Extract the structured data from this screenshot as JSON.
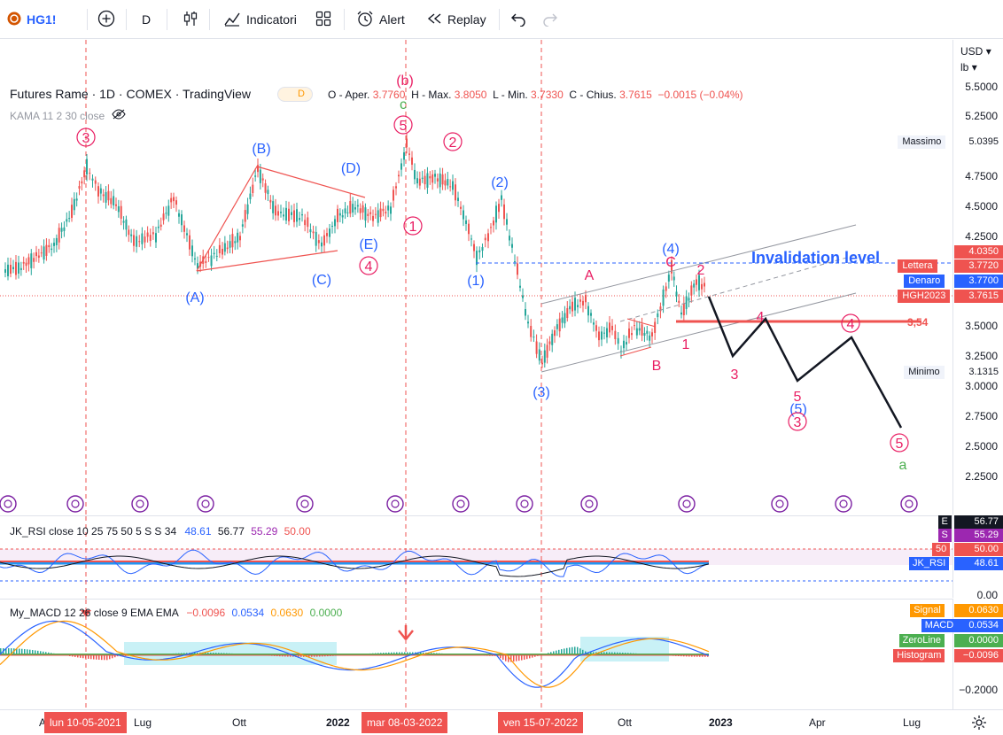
{
  "toolbar": {
    "symbol": "HG1!",
    "interval": "D",
    "indicators_label": "Indicatori",
    "alert_label": "Alert",
    "replay_label": "Replay"
  },
  "legend": {
    "title": "Futures Rame · 1D · COMEX · TradingView",
    "badge": "D",
    "open_label": "O - Aper.",
    "open": "3.7760",
    "high_label": "H - Max.",
    "high": "3.8050",
    "low_label": "L - Min.",
    "low": "3.7330",
    "close_label": "C - Chius.",
    "close": "3.7615",
    "change": "−0.0015 (−0.04%)",
    "kama": "KAMA 11 2 30 close"
  },
  "price_axis": {
    "currency": "USD",
    "unit": "lb",
    "ticks": [
      "5.5000",
      "5.2500",
      "4.7500",
      "4.5000",
      "4.2500",
      "3.5000",
      "3.2500",
      "3.0000",
      "2.7500",
      "2.5000",
      "2.2500"
    ],
    "badges": [
      {
        "label": "Massimo",
        "value": "5.0395",
        "color": "#ffffff",
        "text": "#131722"
      },
      {
        "label": "",
        "value": "4.0350",
        "color": "#ef5350",
        "text": "#ffffff"
      },
      {
        "label": "Lettera",
        "value": "3.7720",
        "color": "#ef5350",
        "text": "#ffffff"
      },
      {
        "label": "Denaro",
        "value": "3.7700",
        "color": "#2962ff",
        "text": "#ffffff"
      },
      {
        "label": "HGH2023",
        "value": "3.7615",
        "color": "#ef5350",
        "text": "#ffffff"
      },
      {
        "label": "Minimo",
        "value": "3.1315",
        "color": "#ffffff",
        "text": "#131722"
      }
    ]
  },
  "annotations": {
    "invalidation": "Invalidation level",
    "level_354": "3,54",
    "wave_labels": [
      {
        "text": "3",
        "color": "#e91e63",
        "circled": true
      },
      {
        "text": "(B)",
        "color": "#2962ff"
      },
      {
        "text": "(A)",
        "color": "#2962ff"
      },
      {
        "text": "(C)",
        "color": "#2962ff"
      },
      {
        "text": "(D)",
        "color": "#2962ff"
      },
      {
        "text": "(E)",
        "color": "#2962ff"
      },
      {
        "text": "4",
        "color": "#e91e63",
        "circled": true
      },
      {
        "text": "(b)",
        "color": "#e91e63"
      },
      {
        "text": "c",
        "color": "#4caf50"
      },
      {
        "text": "5",
        "color": "#e91e63",
        "circled": true
      },
      {
        "text": "1",
        "color": "#e91e63",
        "circled": true
      },
      {
        "text": "2",
        "color": "#e91e63",
        "circled": true
      },
      {
        "text": "(2)",
        "color": "#2962ff"
      },
      {
        "text": "(1)",
        "color": "#2962ff"
      },
      {
        "text": "(3)",
        "color": "#2962ff"
      },
      {
        "text": "A",
        "color": "#e91e63"
      },
      {
        "text": "B",
        "color": "#e91e63"
      },
      {
        "text": "C",
        "color": "#e91e63"
      },
      {
        "text": "(4)",
        "color": "#2962ff"
      },
      {
        "text": "2",
        "color": "#e91e63"
      },
      {
        "text": "1",
        "color": "#e91e63"
      },
      {
        "text": "4",
        "color": "#e91e63"
      },
      {
        "text": "3",
        "color": "#e91e63"
      },
      {
        "text": "5",
        "color": "#e91e63"
      },
      {
        "text": "(5)",
        "color": "#2962ff"
      },
      {
        "text": "3",
        "color": "#e91e63",
        "circled": true
      },
      {
        "text": "4",
        "color": "#e91e63",
        "circled": true
      },
      {
        "text": "5",
        "color": "#e91e63",
        "circled": true
      },
      {
        "text": "a",
        "color": "#4caf50"
      }
    ]
  },
  "rsi": {
    "legend": "JK_RSI close 10 25 75 50 5 S S 34",
    "v1": "48.61",
    "v2": "56.77",
    "v3": "55.29",
    "v4": "50.00",
    "badges": [
      {
        "label": "E",
        "value": "56.77",
        "color": "#131722"
      },
      {
        "label": "S",
        "value": "55.29",
        "color": "#9c27b0"
      },
      {
        "label": "50",
        "value": "50.00",
        "color": "#ef5350"
      },
      {
        "label": "JK_RSI",
        "value": "48.61",
        "color": "#2962ff"
      }
    ],
    "bottom_tick": "0.00"
  },
  "macd": {
    "legend": "My_MACD 12 26 close 9 EMA EMA",
    "v1": "−0.0096",
    "v2": "0.0534",
    "v3": "0.0630",
    "v4": "0.0000",
    "badges": [
      {
        "label": "Signal",
        "value": "0.0630",
        "color": "#ff9800"
      },
      {
        "label": "MACD",
        "value": "0.0534",
        "color": "#2962ff"
      },
      {
        "label": "ZeroLine",
        "value": "0.0000",
        "color": "#4caf50"
      },
      {
        "label": "Histogram",
        "value": "−0.0096",
        "color": "#ef5350"
      }
    ],
    "bottom_tick": "−0.2000"
  },
  "time_axis": {
    "labels": [
      "Lug",
      "Ott",
      "2022",
      "Ott",
      "2023",
      "Apr",
      "Lug"
    ],
    "badges": [
      "lun 10-05-2021",
      "mar 08-03-2022",
      "ven 15-07-2022"
    ],
    "edge": "A"
  }
}
